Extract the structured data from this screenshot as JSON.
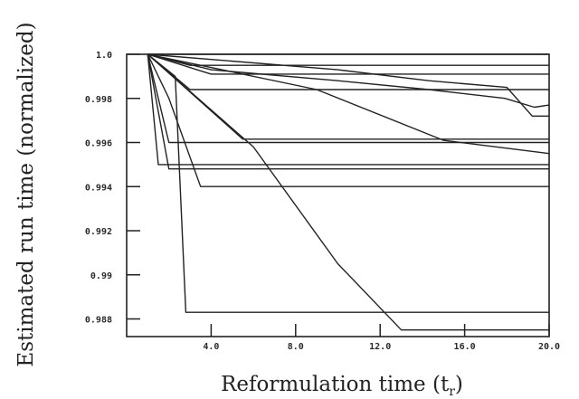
{
  "chart_data": {
    "type": "line",
    "xlabel": "Reformulation time (t",
    "xlabel_subscript": "r",
    "xlabel_close": ")",
    "ylabel": "Estimated run time (normalized)",
    "xlim": [
      0,
      20
    ],
    "ylim": [
      0.9872,
      1.0
    ],
    "x_ticks": [
      4,
      8,
      12,
      16,
      20
    ],
    "x_tick_labels": [
      "4.0",
      "8.0",
      "12.0",
      "16.0",
      "20.0"
    ],
    "y_ticks": [
      1.0,
      0.998,
      0.996,
      0.994,
      0.992,
      0.99,
      0.988
    ],
    "y_tick_labels": [
      "1.0",
      "0.998",
      "0.996",
      "0.994",
      "0.992",
      "0.99",
      "0.988"
    ],
    "grid": false,
    "line_color": "#222222",
    "series": [
      {
        "x": [
          1,
          20
        ],
        "y": [
          1.0,
          1.0
        ]
      },
      {
        "x": [
          1,
          3,
          20
        ],
        "y": [
          1.0,
          0.9995,
          0.9995
        ]
      },
      {
        "x": [
          1,
          4,
          20
        ],
        "y": [
          1.0,
          0.9991,
          0.9991
        ]
      },
      {
        "x": [
          1,
          3,
          20
        ],
        "y": [
          1.0,
          0.9984,
          0.9984
        ]
      },
      {
        "x": [
          1,
          4,
          10,
          14.3,
          17.9,
          19.3,
          20
        ],
        "y": [
          1.0,
          0.9993,
          0.9988,
          0.9984,
          0.998,
          0.9976,
          0.9977
        ]
      },
      {
        "x": [
          1,
          10,
          14.3,
          18,
          19.2,
          20
        ],
        "y": [
          1.0,
          0.9993,
          0.9988,
          0.9985,
          0.9972,
          0.9972
        ]
      },
      {
        "x": [
          1,
          9,
          15,
          20
        ],
        "y": [
          1.0,
          0.9984,
          0.9961,
          0.9955
        ]
      },
      {
        "x": [
          1,
          5.5,
          20
        ],
        "y": [
          1.0,
          0.99615,
          0.99615
        ]
      },
      {
        "x": [
          1,
          2,
          20
        ],
        "y": [
          1.0,
          0.996,
          0.996
        ]
      },
      {
        "x": [
          1,
          1.5,
          20
        ],
        "y": [
          1.0,
          0.995,
          0.995
        ]
      },
      {
        "x": [
          1,
          2,
          20
        ],
        "y": [
          1.0,
          0.9948,
          0.9948
        ]
      },
      {
        "x": [
          1,
          2,
          3.5,
          20
        ],
        "y": [
          1.0,
          0.998,
          0.994,
          0.994
        ]
      },
      {
        "x": [
          1,
          6,
          10,
          13,
          20
        ],
        "y": [
          1.0,
          0.9958,
          0.9905,
          0.9875,
          0.9875
        ]
      },
      {
        "x": [
          1,
          2.3,
          2.8,
          20
        ],
        "y": [
          1.0,
          0.999,
          0.9883,
          0.9883
        ]
      }
    ]
  }
}
